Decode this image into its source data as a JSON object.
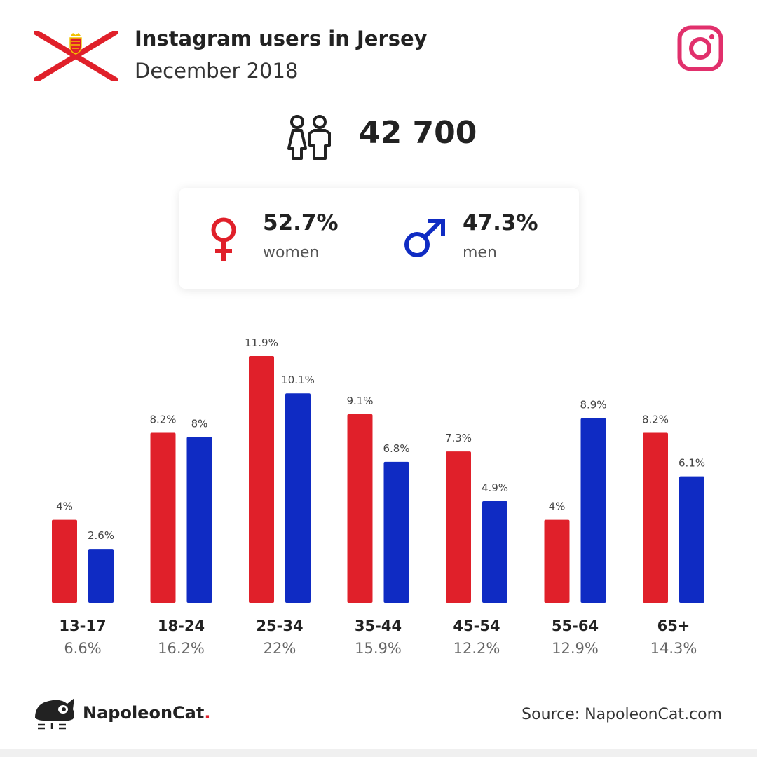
{
  "header": {
    "title": "Instagram users in Jersey",
    "subtitle": "December 2018",
    "flag_icon": "jersey-flag-icon",
    "brand_icon": "instagram-icon"
  },
  "summary": {
    "total": "42 700",
    "women_pct": "52.7%",
    "women_label": "women",
    "men_pct": "47.3%",
    "men_label": "men"
  },
  "colors": {
    "women": "#e0202a",
    "men": "#0f2bc3",
    "instagram": "#e1306c"
  },
  "chart_data": {
    "type": "bar",
    "categories": [
      "13-17",
      "18-24",
      "25-34",
      "35-44",
      "45-54",
      "55-64",
      "65+"
    ],
    "category_totals": [
      "6.6%",
      "16.2%",
      "22%",
      "15.9%",
      "12.2%",
      "12.9%",
      "14.3%"
    ],
    "series": [
      {
        "values": [
          4,
          8.2,
          11.9,
          9.1,
          7.3,
          4,
          8.2
        ],
        "labels": [
          "4%",
          "8.2%",
          "11.9%",
          "9.1%",
          "7.3%",
          "4%",
          "8.2%"
        ],
        "color": "#e0202a"
      },
      {
        "values": [
          2.6,
          8,
          10.1,
          6.8,
          4.9,
          8.9,
          6.1
        ],
        "labels": [
          "2.6%",
          "8%",
          "10.1%",
          "6.8%",
          "4.9%",
          "8.9%",
          "6.1%"
        ],
        "color": "#0f2bc3"
      }
    ],
    "ylim": [
      0,
      11.9
    ],
    "grid": false,
    "legend": "none"
  },
  "footer": {
    "brand_name": "NapoleonCat",
    "brand_dot": ".",
    "source": "Source: NapoleonCat.com"
  }
}
